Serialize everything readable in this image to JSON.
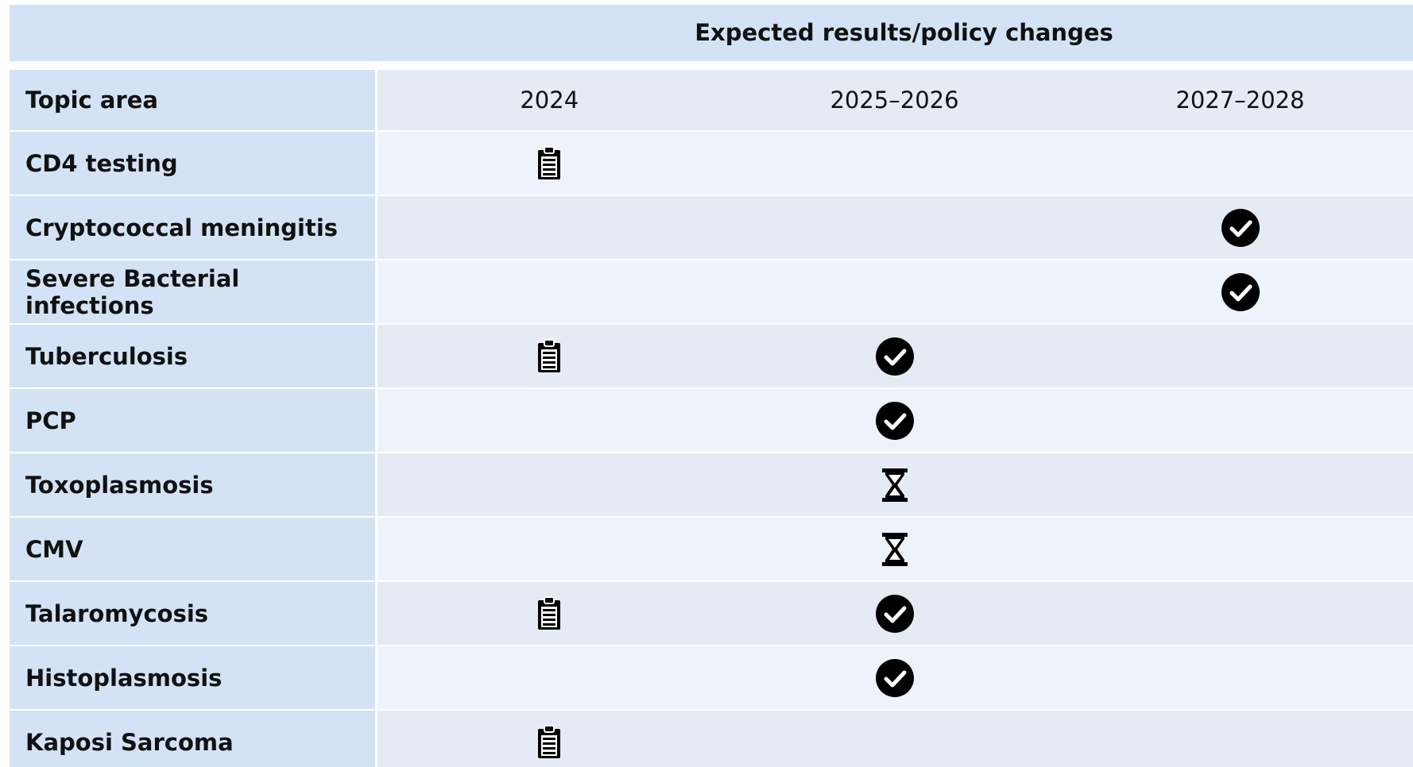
{
  "header": {
    "title": "Expected results/policy changes"
  },
  "table": {
    "columns": [
      "Topic area",
      "2024",
      "2025–2026",
      "2027–2028"
    ],
    "rows": [
      "CD4 testing",
      "Cryptococcal meningitis",
      "Severe Bacterial infections",
      "Tuberculosis",
      "PCP",
      "Toxoplasmosis",
      "CMV",
      "Talaromycosis",
      "Histoplasmosis",
      "Kaposi Sarcoma"
    ]
  }
}
